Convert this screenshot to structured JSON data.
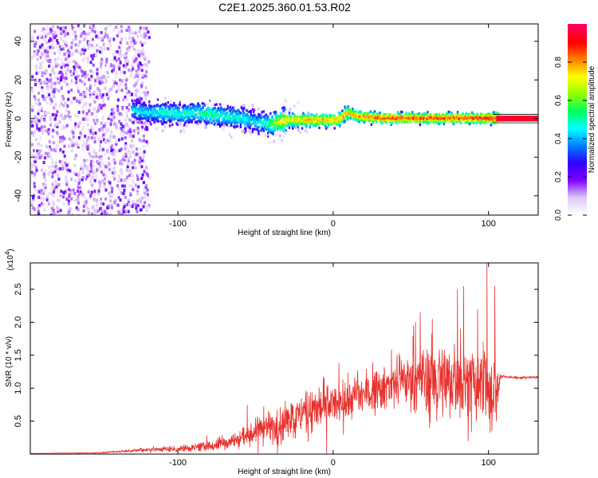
{
  "title": "C2E1.2025.360.01.53.R02",
  "chart_data": [
    {
      "type": "heatmap",
      "title": "C2E1.2025.360.01.53.R02",
      "xlabel": "Height of straight line (km)",
      "ylabel": "Frequency (Hz)",
      "xlim": [
        -195,
        132
      ],
      "ylim": [
        -50,
        49
      ],
      "xticks": [
        -100,
        0,
        100
      ],
      "xtick_labels": [
        "-100",
        "0",
        "100"
      ],
      "yticks": [
        -40,
        -20,
        0,
        20,
        40
      ],
      "ytick_labels": [
        "-40",
        "-20",
        "0",
        "20",
        "40"
      ],
      "colorbar": {
        "label": "Normalized spectral amplitude",
        "range": [
          0,
          1
        ],
        "ticks": [
          0.0,
          0.2,
          0.4,
          0.6,
          0.8
        ],
        "tick_labels": [
          "0.0",
          "0.2",
          "0.4",
          "0.6",
          "0.8"
        ],
        "colors": [
          "#ffffff",
          "#dcc8f8",
          "#7f00ff",
          "#3000ff",
          "#0080ff",
          "#00ffff",
          "#00ff60",
          "#90ff00",
          "#ffff00",
          "#ff8000",
          "#ff0000",
          "#ff0060"
        ]
      },
      "ridge": {
        "x": [
          -130,
          -120,
          -110,
          -100,
          -90,
          -80,
          -70,
          -60,
          -50,
          -42,
          -35,
          -30,
          -20,
          -10,
          0,
          5,
          8,
          15,
          30,
          50,
          70,
          90,
          105
        ],
        "freq": [
          4,
          3,
          3,
          2,
          3,
          2,
          1,
          0,
          -2,
          -3,
          -2,
          -1,
          -1,
          -1,
          -1,
          0,
          3,
          1,
          0,
          0,
          0,
          0,
          0
        ],
        "peak_amplitude": [
          0.45,
          0.45,
          0.5,
          0.5,
          0.5,
          0.55,
          0.5,
          0.5,
          0.45,
          0.55,
          0.75,
          0.75,
          0.8,
          0.8,
          0.8,
          0.8,
          0.8,
          0.85,
          0.9,
          0.9,
          0.9,
          0.9,
          0.95
        ]
      },
      "noise_region": {
        "x_range": [
          -195,
          -125
        ],
        "freq_range": [
          -50,
          49
        ],
        "amplitude": 0.15
      }
    },
    {
      "type": "line",
      "title": "",
      "xlabel": "Height of straight line (km)",
      "ylabel": "SNR (10 * v/v)",
      "y_multiplier_label": "(x10",
      "y_multiplier_exp": "4",
      "y_multiplier_close": ")",
      "xlim": [
        -195,
        132
      ],
      "ylim": [
        0,
        2.9
      ],
      "xticks": [
        -100,
        0,
        100
      ],
      "xtick_labels": [
        "-100",
        "0",
        "100"
      ],
      "yticks": [
        0.5,
        1.0,
        1.5,
        2.0,
        2.5
      ],
      "ytick_labels": [
        "0.5",
        "1.0",
        "1.5",
        "2.0",
        "2.5"
      ],
      "color": "#e8312c",
      "envelope": {
        "x": [
          -195,
          -150,
          -130,
          -120,
          -100,
          -80,
          -65,
          -55,
          -45,
          -35,
          -25,
          -15,
          -5,
          5,
          15,
          25,
          35,
          45,
          55,
          65,
          75,
          85,
          95,
          100,
          105,
          108,
          112,
          120,
          132
        ],
        "base": [
          0.01,
          0.02,
          0.05,
          0.07,
          0.08,
          0.12,
          0.2,
          0.3,
          0.38,
          0.45,
          0.55,
          0.62,
          0.72,
          0.78,
          0.88,
          0.98,
          1.05,
          1.12,
          1.15,
          1.2,
          1.15,
          1.05,
          1.0,
          0.95,
          0.9,
          1.18,
          1.17,
          1.16,
          1.17
        ],
        "spread": [
          0.0,
          0.01,
          0.03,
          0.06,
          0.08,
          0.12,
          0.18,
          0.28,
          0.35,
          0.4,
          0.45,
          0.45,
          0.5,
          0.5,
          0.5,
          0.5,
          0.5,
          0.55,
          0.7,
          0.8,
          0.85,
          0.9,
          0.95,
          0.9,
          0.7,
          0.04,
          0.03,
          0.03,
          0.03
        ]
      },
      "spikes": [
        {
          "x": 53,
          "y": 2.0
        },
        {
          "x": 56,
          "y": 2.15
        },
        {
          "x": 80,
          "y": 2.5
        },
        {
          "x": 84,
          "y": 2.55
        },
        {
          "x": 93,
          "y": 2.2
        },
        {
          "x": 99,
          "y": 2.9
        },
        {
          "x": 104,
          "y": 2.55
        }
      ]
    }
  ]
}
